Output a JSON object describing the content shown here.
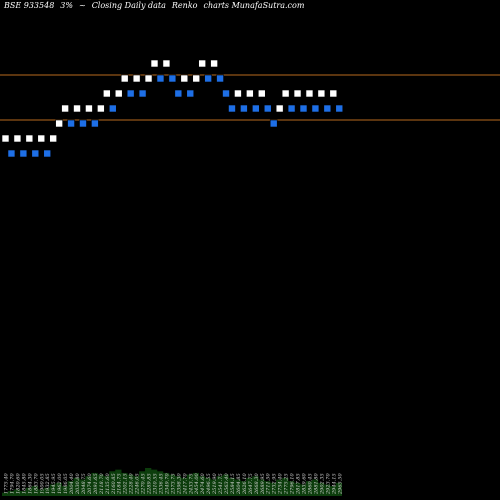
{
  "header": {
    "code": "BSE 933548",
    "pct": "3%",
    "symbol": "~",
    "description": "Closing Daily data",
    "chart_type": "Renko",
    "site": "charts MunafaSutra.com"
  },
  "colors": {
    "background": "#000000",
    "up_brick": "#ffffff",
    "down_brick": "#1e6fe6",
    "level_line": "#b86a1e",
    "volume": "#0c3d0c",
    "tick_label": "#d8d8d8"
  },
  "chart_data": {
    "type": "renko",
    "ylim": [
      -17.5,
      9.5
    ],
    "levels": [
      4.5,
      1.5
    ],
    "bricks": [
      {
        "d": "up",
        "v": 0
      },
      {
        "d": "down",
        "v": -1
      },
      {
        "d": "up",
        "v": 0
      },
      {
        "d": "down",
        "v": -1
      },
      {
        "d": "up",
        "v": 0
      },
      {
        "d": "down",
        "v": -1
      },
      {
        "d": "up",
        "v": 0
      },
      {
        "d": "down",
        "v": -1
      },
      {
        "d": "up",
        "v": 0
      },
      {
        "d": "up",
        "v": 1
      },
      {
        "d": "up",
        "v": 2
      },
      {
        "d": "down",
        "v": 1
      },
      {
        "d": "up",
        "v": 2
      },
      {
        "d": "down",
        "v": 1
      },
      {
        "d": "up",
        "v": 2
      },
      {
        "d": "down",
        "v": 1
      },
      {
        "d": "up",
        "v": 2
      },
      {
        "d": "up",
        "v": 3
      },
      {
        "d": "down",
        "v": 2
      },
      {
        "d": "up",
        "v": 3
      },
      {
        "d": "up",
        "v": 4
      },
      {
        "d": "down",
        "v": 3
      },
      {
        "d": "up",
        "v": 4
      },
      {
        "d": "down",
        "v": 3
      },
      {
        "d": "up",
        "v": 4
      },
      {
        "d": "up",
        "v": 5
      },
      {
        "d": "down",
        "v": 4
      },
      {
        "d": "up",
        "v": 5
      },
      {
        "d": "down",
        "v": 4
      },
      {
        "d": "down",
        "v": 3
      },
      {
        "d": "up",
        "v": 4
      },
      {
        "d": "down",
        "v": 3
      },
      {
        "d": "up",
        "v": 4
      },
      {
        "d": "up",
        "v": 5
      },
      {
        "d": "down",
        "v": 4
      },
      {
        "d": "up",
        "v": 5
      },
      {
        "d": "down",
        "v": 4
      },
      {
        "d": "down",
        "v": 3
      },
      {
        "d": "down",
        "v": 2
      },
      {
        "d": "up",
        "v": 3
      },
      {
        "d": "down",
        "v": 2
      },
      {
        "d": "up",
        "v": 3
      },
      {
        "d": "down",
        "v": 2
      },
      {
        "d": "up",
        "v": 3
      },
      {
        "d": "down",
        "v": 2
      },
      {
        "d": "down",
        "v": 1
      },
      {
        "d": "up",
        "v": 2
      },
      {
        "d": "up",
        "v": 3
      },
      {
        "d": "down",
        "v": 2
      },
      {
        "d": "up",
        "v": 3
      },
      {
        "d": "down",
        "v": 2
      },
      {
        "d": "up",
        "v": 3
      },
      {
        "d": "down",
        "v": 2
      },
      {
        "d": "up",
        "v": 3
      },
      {
        "d": "down",
        "v": 2
      },
      {
        "d": "up",
        "v": 3
      },
      {
        "d": "down",
        "v": 2
      }
    ],
    "xlabels": [
      "1775.40",
      "1794.70",
      "1820.60",
      "1845.80",
      "1864.30",
      "1883.70",
      "1900.05",
      "1932.85",
      "1945.95",
      "1962.00",
      "1986.05",
      "2004.40",
      "2030.80",
      "2048.75",
      "2074.60",
      "2091.65",
      "2118.70",
      "2135.60",
      "2160.85",
      "2184.75",
      "2202.15",
      "2228.40",
      "2246.05",
      "2270.45",
      "2289.85",
      "2310.55",
      "2336.45",
      "2349.70",
      "2373.75",
      "2398.30",
      "2417.70",
      "2433.75",
      "2454.00",
      "2474.60",
      "2496.55",
      "2519.90",
      "2541.75",
      "2563.40",
      "2584.15",
      "2604.85",
      "2626.10",
      "2647.75",
      "2668.30",
      "2689.95",
      "2711.50",
      "2732.95",
      "2754.40",
      "2775.25",
      "2796.10",
      "2817.85",
      "2839.60",
      "2860.45",
      "2881.80",
      "2902.35",
      "2923.70",
      "2944.15",
      "2965.50"
    ],
    "volume": [
      2,
      3,
      4,
      3,
      5,
      6,
      4,
      5,
      7,
      8,
      6,
      9,
      11,
      10,
      12,
      14,
      13,
      12,
      15,
      16,
      14,
      13,
      12,
      15,
      17,
      16,
      15,
      14,
      13,
      12,
      11,
      13,
      14,
      12,
      11,
      10,
      12,
      13,
      11,
      10,
      9,
      11,
      12,
      10,
      9,
      8,
      10,
      11,
      9,
      8,
      7,
      9,
      10,
      8,
      7,
      6,
      8
    ]
  }
}
